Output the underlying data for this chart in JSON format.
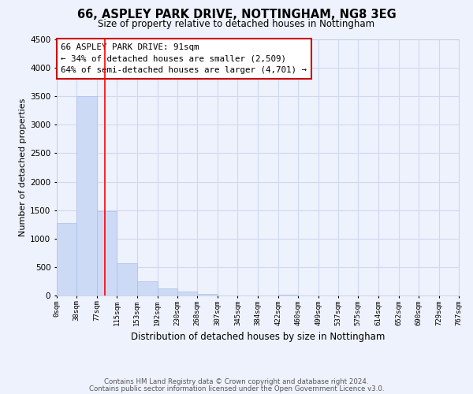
{
  "title": "66, ASPLEY PARK DRIVE, NOTTINGHAM, NG8 3EG",
  "subtitle": "Size of property relative to detached houses in Nottingham",
  "xlabel": "Distribution of detached houses by size in Nottingham",
  "ylabel": "Number of detached properties",
  "bar_color": "#ccdaf5",
  "bar_edge_color": "#a8c0e8",
  "vline_x": 91,
  "vline_color": "#ff0000",
  "annotation_title": "66 ASPLEY PARK DRIVE: 91sqm",
  "annotation_line1": "← 34% of detached houses are smaller (2,509)",
  "annotation_line2": "64% of semi-detached houses are larger (4,701) →",
  "annotation_box_color": "#ffffff",
  "annotation_box_edge": "#cc0000",
  "bin_edges": [
    0,
    38,
    77,
    115,
    153,
    192,
    230,
    268,
    307,
    345,
    384,
    422,
    460,
    499,
    537,
    575,
    614,
    652,
    690,
    729,
    767
  ],
  "bar_heights": [
    1280,
    3500,
    1480,
    570,
    245,
    130,
    70,
    30,
    0,
    0,
    0,
    20,
    0,
    0,
    0,
    0,
    0,
    0,
    0,
    0
  ],
  "ylim": [
    0,
    4500
  ],
  "yticks": [
    0,
    500,
    1000,
    1500,
    2000,
    2500,
    3000,
    3500,
    4000,
    4500
  ],
  "background_color": "#eef2fc",
  "grid_color": "#d0d8f0",
  "footer1": "Contains HM Land Registry data © Crown copyright and database right 2024.",
  "footer2": "Contains public sector information licensed under the Open Government Licence v3.0."
}
